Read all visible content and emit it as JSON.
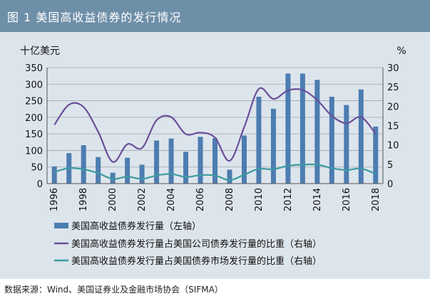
{
  "figure": {
    "title": "图 1  美国高收益债券的发行情况",
    "source": "数据来源：Wind、美国证券业及金融市场协会（SIFMA）"
  },
  "colors": {
    "title_bg": "#6e8fa8",
    "panel_bg": "#dde5ec",
    "bar": "#4d7db0",
    "share_corporate": "#6b4f9a",
    "share_total": "#3c9aa0"
  },
  "chart_data": {
    "type": "bar",
    "categories": [
      "1996",
      "1997",
      "1998",
      "1999",
      "2000",
      "2001",
      "2002",
      "2003",
      "2004",
      "2005",
      "2006",
      "2007",
      "2008",
      "2009",
      "2010",
      "2011",
      "2012",
      "2013",
      "2014",
      "2015",
      "2016",
      "2017",
      "2018"
    ],
    "x_tick_labels": [
      "1996",
      "1998",
      "2000",
      "2002",
      "2004",
      "2006",
      "2008",
      "2010",
      "2012",
      "2014",
      "2016",
      "2018"
    ],
    "ylabel_left": "十亿美元",
    "ylabel_right": "%",
    "ylim_left": [
      0,
      350
    ],
    "ylim_right": [
      0,
      30
    ],
    "yticks_left": [
      0,
      50,
      100,
      150,
      200,
      250,
      300,
      350
    ],
    "yticks_right": [
      0,
      5,
      10,
      15,
      20,
      25,
      30
    ],
    "grid": true,
    "legend_position": "bottom",
    "series": [
      {
        "name": "美国高收益债券发行量（左轴）",
        "type": "bar",
        "axis": "left",
        "values": [
          52,
          92,
          116,
          80,
          33,
          78,
          57,
          130,
          136,
          96,
          141,
          137,
          42,
          145,
          262,
          226,
          332,
          332,
          313,
          262,
          237,
          284,
          172
        ]
      },
      {
        "name": "美国高收益债券发行量占美国公司债券发行量的比重（右轴）",
        "type": "line",
        "axis": "right",
        "values": [
          15.2,
          20.4,
          19.8,
          13.4,
          5.6,
          10.2,
          9.2,
          16.4,
          17.2,
          12.8,
          13.2,
          11.9,
          5.9,
          14.6,
          24.5,
          21.9,
          24.1,
          24.2,
          21.6,
          17.5,
          15.6,
          17.2,
          12.9
        ]
      },
      {
        "name": "美国高收益债券发行量占美国债券市场发行量的比重（右轴）",
        "type": "line",
        "axis": "right",
        "values": [
          3.0,
          4.0,
          3.7,
          2.7,
          1.2,
          1.8,
          1.2,
          2.1,
          2.5,
          1.7,
          2.2,
          2.1,
          0.9,
          2.3,
          3.8,
          3.7,
          4.6,
          4.9,
          4.9,
          4.0,
          3.5,
          3.9,
          2.5
        ]
      }
    ]
  }
}
